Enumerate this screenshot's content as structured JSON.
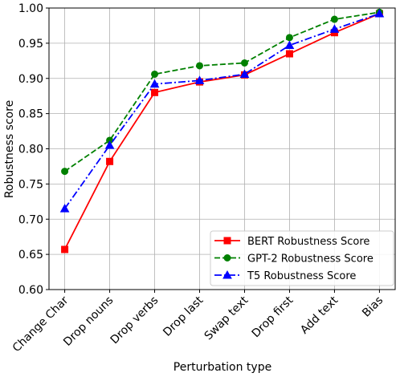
{
  "chart_data": {
    "type": "line",
    "categories": [
      "Change Char",
      "Drop nouns",
      "Drop verbs",
      "Drop last",
      "Swap text",
      "Drop first",
      "Add text",
      "Bias"
    ],
    "series": [
      {
        "name": "BERT Robustness Score",
        "color": "#ff0000",
        "linestyle": "solid",
        "marker": "square",
        "values": [
          0.657,
          0.782,
          0.88,
          0.895,
          0.905,
          0.935,
          0.965,
          0.992
        ]
      },
      {
        "name": "GPT-2 Robustness Score",
        "color": "#008000",
        "linestyle": "dashed",
        "marker": "circle",
        "values": [
          0.768,
          0.812,
          0.906,
          0.918,
          0.922,
          0.958,
          0.984,
          0.994
        ]
      },
      {
        "name": "T5 Robustness Score",
        "color": "#0000ff",
        "linestyle": "dashdot",
        "marker": "triangle",
        "values": [
          0.715,
          0.805,
          0.892,
          0.897,
          0.906,
          0.947,
          0.97,
          0.992
        ]
      }
    ],
    "xlabel": "Perturbation type",
    "ylabel": "Robustness score",
    "ylim": [
      0.6,
      1.0
    ],
    "yticks": [
      {
        "value": 0.6,
        "label": "0.60"
      },
      {
        "value": 0.65,
        "label": "0.65"
      },
      {
        "value": 0.7,
        "label": "0.70"
      },
      {
        "value": 0.75,
        "label": "0.75"
      },
      {
        "value": 0.8,
        "label": "0.80"
      },
      {
        "value": 0.85,
        "label": "0.85"
      },
      {
        "value": 0.9,
        "label": "0.90"
      },
      {
        "value": 0.95,
        "label": "0.95"
      },
      {
        "value": 1.0,
        "label": "1.00"
      }
    ],
    "grid": true,
    "legend": "lower right"
  }
}
